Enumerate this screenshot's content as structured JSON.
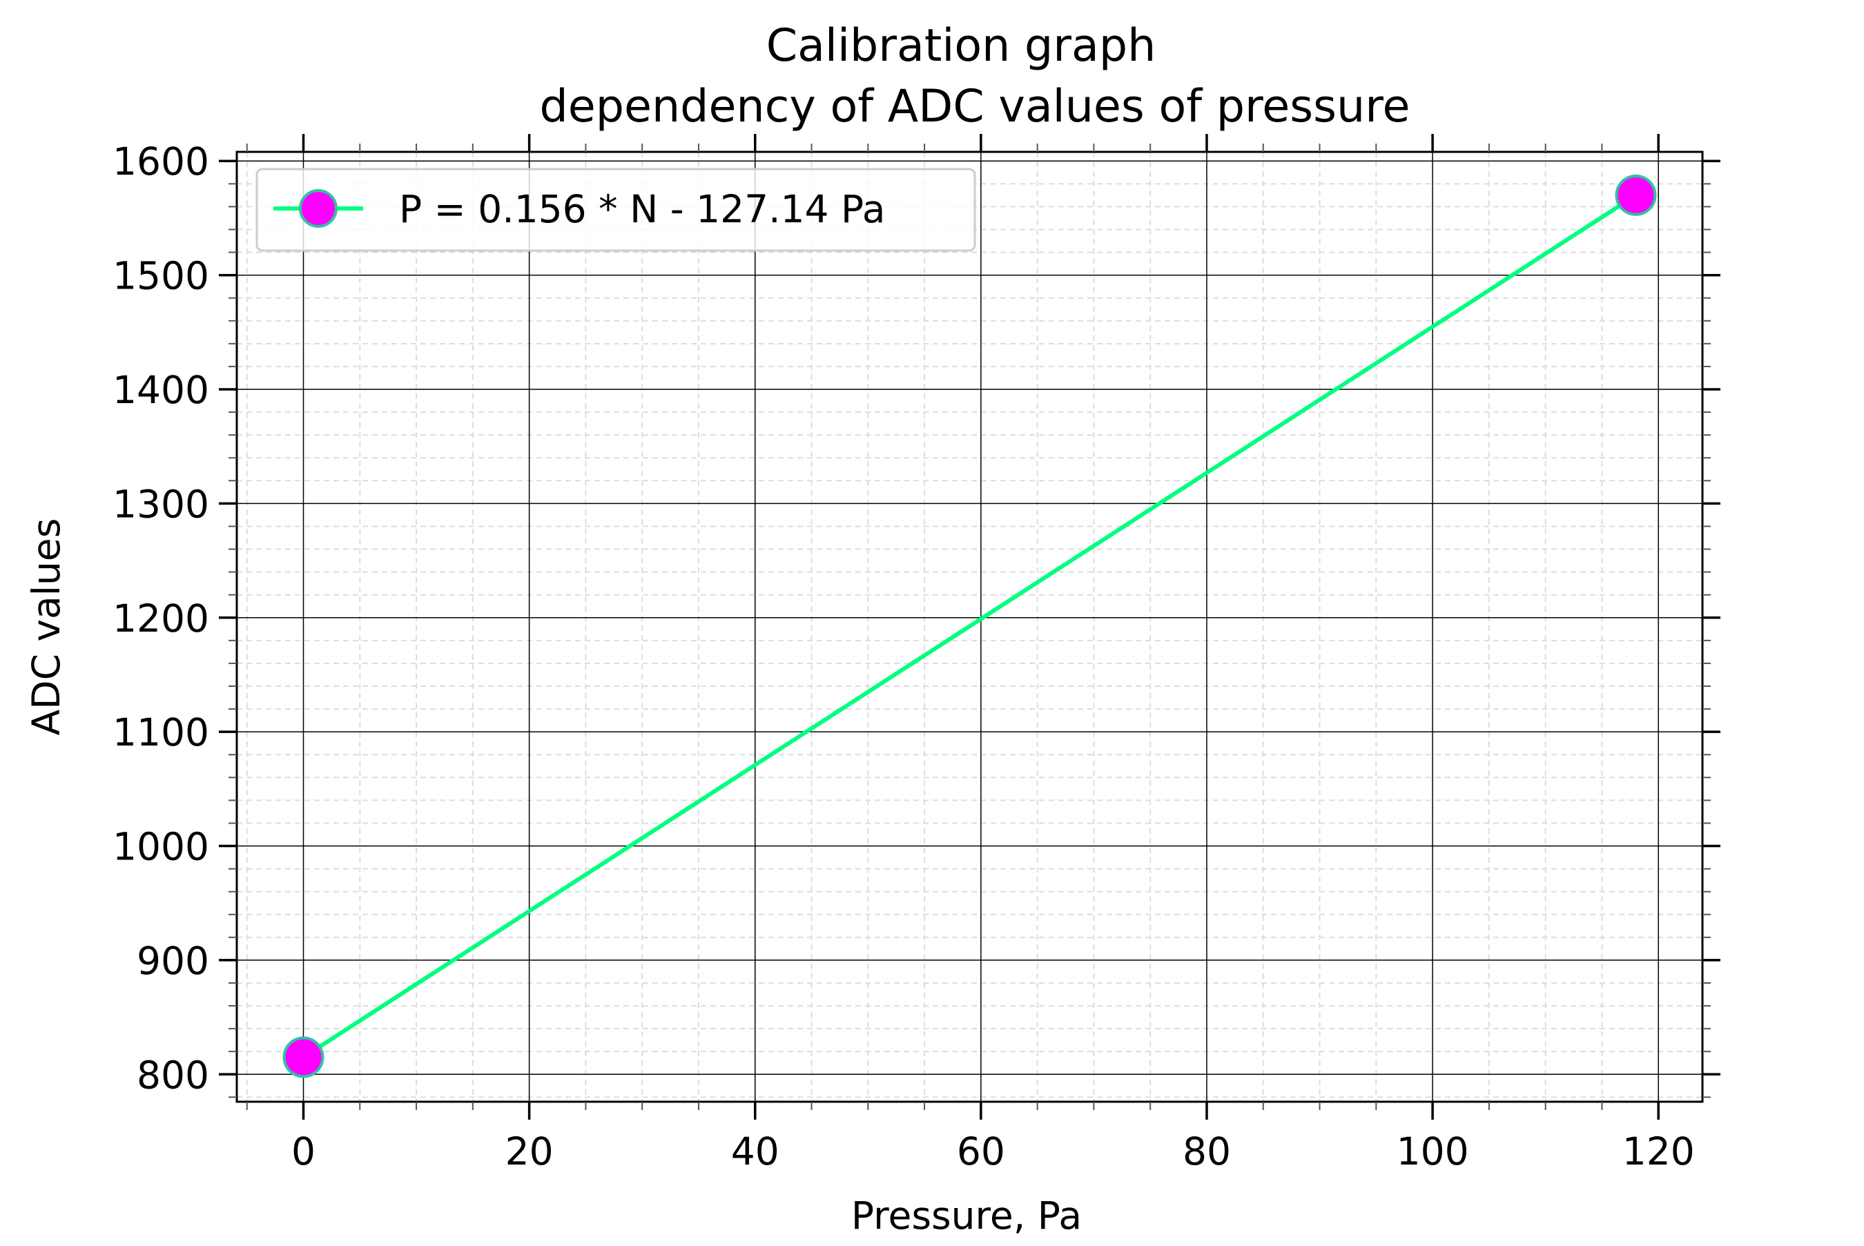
{
  "chart_data": {
    "type": "line",
    "title": "Calibration graph",
    "subtitle": "dependency of ADC values of pressure",
    "xlabel": "Pressure, Pa",
    "ylabel": "ADC values",
    "xlim": [
      -5.9,
      123.9
    ],
    "ylim": [
      776,
      1608
    ],
    "x_ticks": [
      0,
      20,
      40,
      60,
      80,
      100,
      120
    ],
    "y_ticks": [
      800,
      900,
      1000,
      1100,
      1200,
      1300,
      1400,
      1500,
      1600
    ],
    "x_minor_step": 5,
    "y_minor_step": 20,
    "grid": "major solid, minor dashed",
    "legend_position": "top-left",
    "series": [
      {
        "name": "P = 0.156 * N - 127.14 Pa",
        "x": [
          0,
          118
        ],
        "y": [
          815,
          1570
        ],
        "line_color": "#00ff7f",
        "marker_face_color": "#ff00ff",
        "marker_edge_color": "#2ec4a0"
      }
    ]
  }
}
